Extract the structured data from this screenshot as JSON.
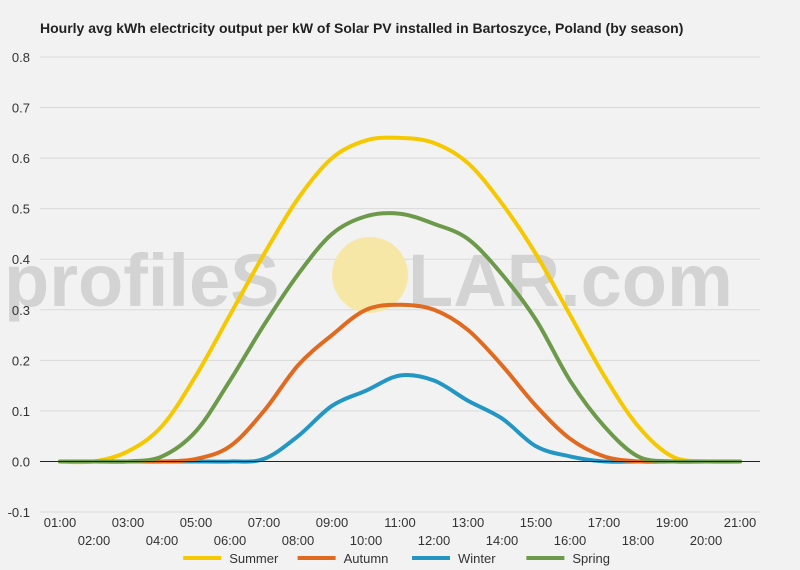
{
  "watermark": {
    "text_left": "profileS",
    "text_right": "LAR.com",
    "sun_color": "#f7e7a6"
  },
  "chart_data": {
    "type": "line",
    "title": "Hourly avg kWh electricity output per kW of Solar PV installed in Bartoszyce, Poland (by season)",
    "xlabel": "",
    "ylabel": "",
    "ylim": [
      -0.1,
      0.8
    ],
    "yticks": [
      -0.1,
      0.0,
      0.1,
      0.2,
      0.3,
      0.4,
      0.5,
      0.6,
      0.7,
      0.8
    ],
    "ytick_labels": [
      "-0.1",
      "0.0",
      "0.1",
      "0.2",
      "0.3",
      "0.4",
      "0.5",
      "0.6",
      "0.7",
      "0.8"
    ],
    "x": [
      "01:00",
      "02:00",
      "03:00",
      "04:00",
      "05:00",
      "06:00",
      "07:00",
      "08:00",
      "09:00",
      "10:00",
      "11:00",
      "12:00",
      "13:00",
      "14:00",
      "15:00",
      "16:00",
      "17:00",
      "18:00",
      "19:00",
      "20:00",
      "21:00"
    ],
    "grid": true,
    "legend_position": "bottom",
    "series": [
      {
        "name": "Summer",
        "color": "#f5c800",
        "values": [
          0.0,
          0.0,
          0.02,
          0.07,
          0.17,
          0.29,
          0.41,
          0.52,
          0.6,
          0.635,
          0.64,
          0.63,
          0.59,
          0.51,
          0.41,
          0.29,
          0.17,
          0.07,
          0.01,
          0.0,
          0.0
        ]
      },
      {
        "name": "Autumn",
        "color": "#e06a1f",
        "values": [
          0.0,
          0.0,
          0.0,
          0.0,
          0.005,
          0.03,
          0.1,
          0.19,
          0.25,
          0.3,
          0.31,
          0.3,
          0.26,
          0.19,
          0.11,
          0.045,
          0.01,
          0.0,
          0.0,
          0.0,
          0.0
        ]
      },
      {
        "name": "Winter",
        "color": "#2496c4",
        "values": [
          0.0,
          0.0,
          0.0,
          0.0,
          0.0,
          0.0,
          0.005,
          0.05,
          0.11,
          0.14,
          0.17,
          0.16,
          0.12,
          0.085,
          0.03,
          0.01,
          0.0,
          0.0,
          0.0,
          0.0,
          0.0
        ]
      },
      {
        "name": "Spring",
        "color": "#6d9a4a",
        "values": [
          0.0,
          0.0,
          0.0,
          0.01,
          0.06,
          0.16,
          0.27,
          0.37,
          0.45,
          0.485,
          0.49,
          0.47,
          0.44,
          0.37,
          0.28,
          0.16,
          0.07,
          0.01,
          0.0,
          0.0,
          0.0
        ]
      }
    ]
  }
}
